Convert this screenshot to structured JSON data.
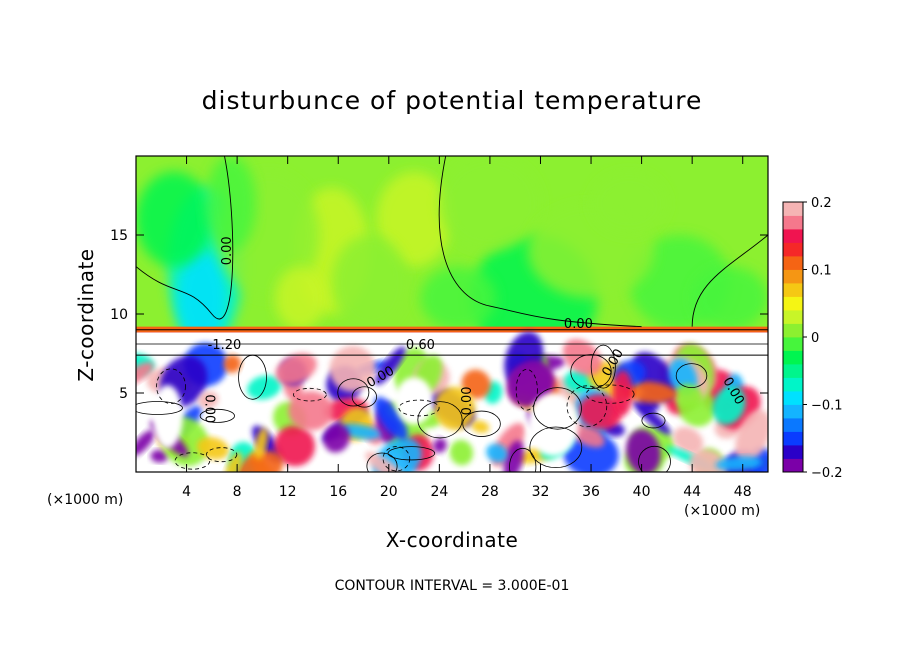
{
  "chart_data": {
    "type": "heatmap",
    "title": "disturbunce of potential temperature",
    "xlabel": "X-coordinate",
    "ylabel": "Z-coordinate",
    "x_unit_left": "(×1000 m)",
    "x_unit_right": "(×1000 m)",
    "footnote": "CONTOUR INTERVAL = 3.000E-01",
    "xlim": [
      0,
      50
    ],
    "ylim": [
      0,
      20
    ],
    "x_ticks": [
      4,
      8,
      12,
      16,
      20,
      24,
      28,
      32,
      36,
      40,
      44,
      48
    ],
    "y_ticks": [
      5,
      10,
      15
    ],
    "colorbar": {
      "range": [
        -0.2,
        0.2
      ],
      "tick_values": [
        0.2,
        0.1,
        0,
        -0.1,
        -0.2
      ],
      "tick_labels": [
        "0.2",
        "0.1",
        "0",
        "−0.1",
        "−0.2"
      ],
      "colors": [
        "#7b00a8",
        "#2a00c8",
        "#0a3cff",
        "#0a78ff",
        "#14b4ff",
        "#00e1ff",
        "#00f5c8",
        "#00f58c",
        "#00f550",
        "#46f53c",
        "#8cf030",
        "#c8f528",
        "#f5f514",
        "#f5c814",
        "#f59614",
        "#f56414",
        "#f52828",
        "#f01450",
        "#f5788c",
        "#f5b4b4"
      ]
    },
    "contour_labels": [
      {
        "text": "0.00",
        "x": 7.5,
        "y": 14.0,
        "rotate": -90
      },
      {
        "text": "0.00",
        "x": 35.0,
        "y": 9.1,
        "rotate": 0
      },
      {
        "text": "-1.20",
        "x": 7.0,
        "y": 7.8,
        "rotate": 0
      },
      {
        "text": "0.60",
        "x": 22.5,
        "y": 7.8,
        "rotate": 0
      },
      {
        "text": "0.00",
        "x": 19.5,
        "y": 5.8,
        "rotate": -30
      },
      {
        "text": "0.00",
        "x": 5.5,
        "y": 4.0,
        "rotate": 90
      },
      {
        "text": "0.00",
        "x": 26.5,
        "y": 4.5,
        "rotate": -90
      },
      {
        "text": "0.00",
        "x": 38.0,
        "y": 6.8,
        "rotate": -60
      },
      {
        "text": "0.00",
        "x": 47.0,
        "y": 5.0,
        "rotate": 60
      }
    ]
  }
}
